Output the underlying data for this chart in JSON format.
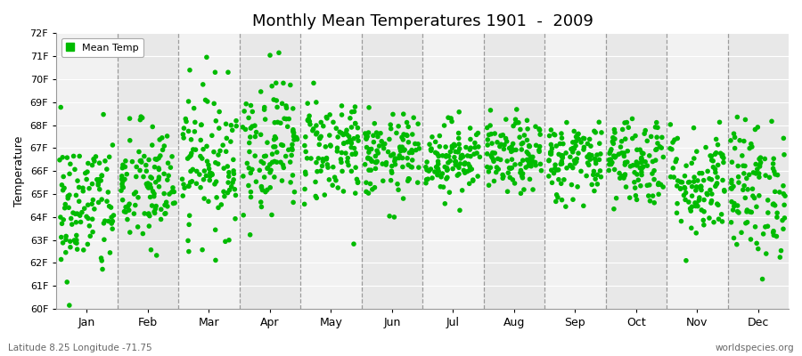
{
  "title": "Monthly Mean Temperatures 1901  -  2009",
  "ylabel": "Temperature",
  "ylim": [
    60,
    72
  ],
  "yticks": [
    60,
    61,
    62,
    63,
    64,
    65,
    66,
    67,
    68,
    69,
    70,
    71,
    72
  ],
  "ytick_labels": [
    "60F",
    "61F",
    "62F",
    "63F",
    "64F",
    "65F",
    "66F",
    "67F",
    "68F",
    "69F",
    "70F",
    "71F",
    "72F"
  ],
  "months": [
    "Jan",
    "Feb",
    "Mar",
    "Apr",
    "May",
    "Jun",
    "Jul",
    "Aug",
    "Sep",
    "Oct",
    "Nov",
    "Dec"
  ],
  "month_positions": [
    0.5,
    1.5,
    2.5,
    3.5,
    4.5,
    5.5,
    6.5,
    7.5,
    8.5,
    9.5,
    10.5,
    11.5
  ],
  "xlim": [
    0,
    12
  ],
  "dot_color": "#00BB00",
  "marker": "o",
  "marker_size": 4,
  "fig_bg_color": "#FFFFFF",
  "ax_bg_color": "#FFFFFF",
  "band_colors": [
    "#F2F2F2",
    "#E8E8E8"
  ],
  "subtitle_left": "Latitude 8.25 Longitude -71.75",
  "subtitle_right": "worldspecies.org",
  "legend_label": "Mean Temp",
  "n_years": 109,
  "seed": 42,
  "monthly_means": [
    64.4,
    65.3,
    66.5,
    67.2,
    67.0,
    66.6,
    66.6,
    66.6,
    66.5,
    66.5,
    65.5,
    65.2
  ],
  "monthly_stds": [
    1.6,
    1.4,
    1.6,
    1.5,
    1.2,
    0.9,
    0.8,
    0.8,
    0.9,
    1.0,
    1.2,
    1.5
  ]
}
